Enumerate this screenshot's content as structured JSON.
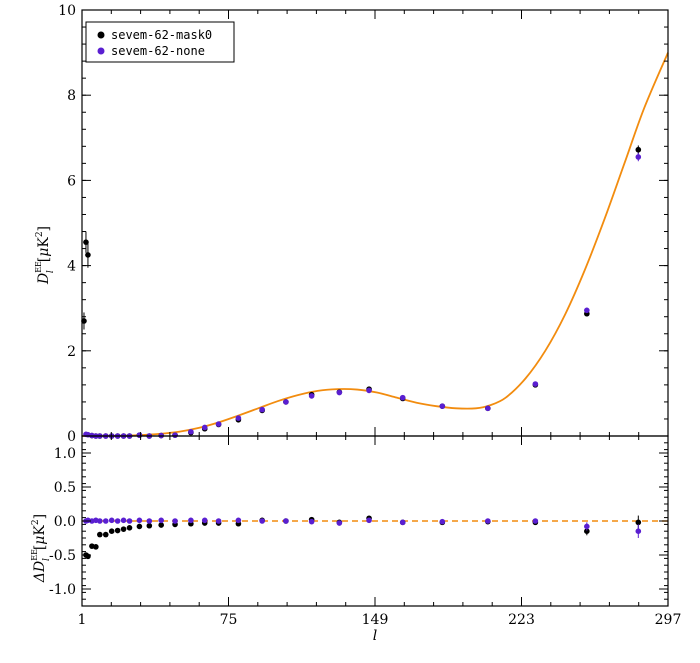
{
  "chart_data": [
    {
      "type": "scatter",
      "panel": "top",
      "xlim": [
        1,
        297
      ],
      "ylim": [
        0,
        10
      ],
      "x_ticks": [
        1,
        75,
        149,
        223,
        297
      ],
      "y_ticks": [
        0,
        2,
        4,
        6,
        8,
        10
      ],
      "xlabel": "l",
      "ylabel_main": "D",
      "ylabel_sup": "EE",
      "ylabel_sub": "l",
      "ylabel_unit_pre": "[",
      "ylabel_unit_mu": "μ",
      "ylabel_unit_k": "K",
      "ylabel_unit_pow": "2",
      "ylabel_unit_post": "]",
      "legend_position": "top-left",
      "legend": [
        {
          "label": "sevem-62-mask0",
          "color": "#000000"
        },
        {
          "label": "sevem-62-none",
          "color": "#5a1fd1"
        }
      ],
      "model_color": "#f28c0f",
      "model_curve": {
        "x": [
          1,
          10,
          20,
          30,
          40,
          50,
          60,
          70,
          80,
          90,
          100,
          110,
          120,
          130,
          140,
          150,
          160,
          170,
          180,
          190,
          200,
          207,
          215,
          225,
          235,
          245,
          255,
          265,
          275,
          285,
          297
        ],
        "y": [
          0.0,
          0.0,
          0.005,
          0.02,
          0.05,
          0.1,
          0.19,
          0.32,
          0.48,
          0.65,
          0.82,
          0.96,
          1.06,
          1.1,
          1.09,
          1.02,
          0.9,
          0.78,
          0.7,
          0.65,
          0.65,
          0.72,
          0.9,
          1.35,
          2.0,
          2.85,
          3.9,
          5.1,
          6.4,
          7.7,
          9.0
        ]
      },
      "series": [
        {
          "name": "sevem-62-mask0",
          "color": "#000000",
          "x": [
            2,
            3,
            4,
            6,
            8,
            10,
            13,
            16,
            19,
            22,
            25,
            30,
            35,
            41,
            48,
            56,
            63,
            70,
            80,
            92,
            104,
            117,
            131,
            146,
            163,
            183,
            206,
            230,
            256,
            282
          ],
          "y": [
            2.7,
            4.55,
            4.25,
            0.01,
            0.0,
            0.0,
            0.0,
            0.0,
            0.0,
            0.0,
            0.0,
            0.02,
            0.0,
            0.01,
            0.02,
            0.08,
            0.17,
            0.27,
            0.38,
            0.6,
            0.8,
            0.97,
            1.03,
            1.1,
            0.88,
            0.7,
            0.65,
            1.2,
            2.87,
            6.72
          ],
          "yerr": [
            0.2,
            0.25,
            0.3,
            0.02,
            0.02,
            0.02,
            0.02,
            0.02,
            0.02,
            0.02,
            0.02,
            0.02,
            0.02,
            0.02,
            0.02,
            0.02,
            0.02,
            0.02,
            0.03,
            0.03,
            0.03,
            0.03,
            0.03,
            0.03,
            0.03,
            0.03,
            0.04,
            0.05,
            0.06,
            0.1
          ]
        },
        {
          "name": "sevem-62-none",
          "color": "#5a1fd1",
          "x": [
            3,
            4,
            6,
            8,
            10,
            13,
            16,
            19,
            22,
            25,
            30,
            35,
            41,
            48,
            56,
            63,
            70,
            80,
            92,
            104,
            117,
            131,
            146,
            163,
            183,
            206,
            230,
            256,
            282
          ],
          "y": [
            0.04,
            0.03,
            0.01,
            0.0,
            0.0,
            0.0,
            0.0,
            0.0,
            0.0,
            0.0,
            0.02,
            0.0,
            0.01,
            0.02,
            0.1,
            0.2,
            0.28,
            0.42,
            0.62,
            0.8,
            0.94,
            1.02,
            1.07,
            0.9,
            0.7,
            0.65,
            1.22,
            2.95,
            6.55
          ],
          "yerr": [
            0.02,
            0.02,
            0.02,
            0.02,
            0.02,
            0.02,
            0.02,
            0.02,
            0.02,
            0.02,
            0.02,
            0.02,
            0.02,
            0.02,
            0.02,
            0.02,
            0.02,
            0.03,
            0.03,
            0.03,
            0.03,
            0.03,
            0.03,
            0.03,
            0.03,
            0.04,
            0.05,
            0.06,
            0.1
          ]
        }
      ]
    },
    {
      "type": "scatter",
      "panel": "bottom",
      "xlim": [
        1,
        297
      ],
      "ylim": [
        -1.25,
        1.25
      ],
      "x_ticks": [
        1,
        75,
        149,
        223,
        297
      ],
      "y_ticks": [
        -1.0,
        -0.5,
        0.0,
        0.5,
        1.0
      ],
      "y_tick_labels": [
        "-1.0",
        "-0.5",
        "0.0",
        "0.5",
        "1.0"
      ],
      "xlabel": "l",
      "ylabel_main": "ΔD",
      "ylabel_sup": "EE",
      "ylabel_sub": "l",
      "ylabel_unit_pre": "[",
      "ylabel_unit_mu": "μ",
      "ylabel_unit_k": "K",
      "ylabel_unit_pow": "2",
      "ylabel_unit_post": "]",
      "zero_line_color": "#f28c0f",
      "series": [
        {
          "name": "sevem-62-mask0",
          "color": "#000000",
          "x": [
            3,
            4,
            6,
            8,
            10,
            13,
            16,
            19,
            22,
            25,
            30,
            35,
            41,
            48,
            56,
            63,
            70,
            80,
            92,
            104,
            117,
            131,
            146,
            163,
            183,
            206,
            230,
            256,
            282
          ],
          "y": [
            -0.5,
            -0.52,
            -0.37,
            -0.38,
            -0.2,
            -0.2,
            -0.15,
            -0.14,
            -0.12,
            -0.1,
            -0.08,
            -0.07,
            -0.06,
            -0.05,
            -0.04,
            -0.03,
            -0.03,
            -0.04,
            0.01,
            0.0,
            0.02,
            -0.02,
            0.04,
            -0.02,
            -0.02,
            -0.01,
            -0.02,
            -0.15,
            -0.02
          ],
          "yerr": [
            0.02,
            0.02,
            0.02,
            0.02,
            0.02,
            0.02,
            0.02,
            0.02,
            0.02,
            0.02,
            0.02,
            0.02,
            0.02,
            0.02,
            0.02,
            0.02,
            0.02,
            0.02,
            0.02,
            0.02,
            0.02,
            0.02,
            0.02,
            0.02,
            0.02,
            0.03,
            0.03,
            0.06,
            0.1
          ]
        },
        {
          "name": "sevem-62-none",
          "color": "#5a1fd1",
          "x": [
            3,
            4,
            6,
            8,
            10,
            13,
            16,
            19,
            22,
            25,
            30,
            35,
            41,
            48,
            56,
            63,
            70,
            80,
            92,
            104,
            117,
            131,
            146,
            163,
            183,
            206,
            230,
            256,
            282
          ],
          "y": [
            0.0,
            0.01,
            0.0,
            0.01,
            0.0,
            0.0,
            0.01,
            0.0,
            0.01,
            0.0,
            0.01,
            0.0,
            0.01,
            0.0,
            0.01,
            0.01,
            0.0,
            0.01,
            0.0,
            0.0,
            -0.01,
            -0.03,
            0.01,
            -0.02,
            -0.01,
            0.0,
            0.0,
            -0.08,
            -0.15
          ],
          "yerr": [
            0.02,
            0.02,
            0.02,
            0.02,
            0.02,
            0.02,
            0.02,
            0.02,
            0.02,
            0.02,
            0.02,
            0.02,
            0.02,
            0.02,
            0.02,
            0.02,
            0.02,
            0.02,
            0.02,
            0.02,
            0.02,
            0.02,
            0.02,
            0.02,
            0.02,
            0.03,
            0.03,
            0.06,
            0.1
          ]
        }
      ]
    }
  ]
}
